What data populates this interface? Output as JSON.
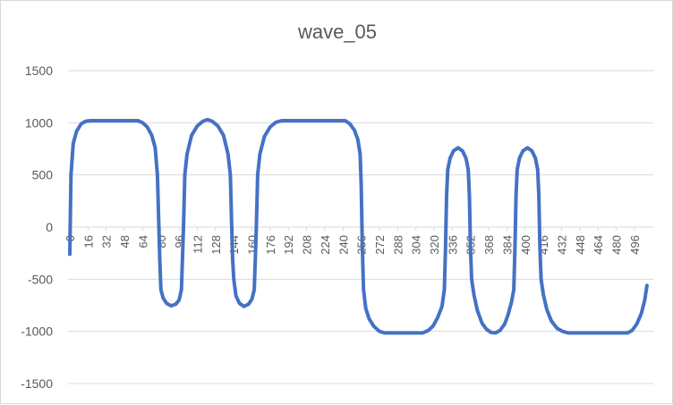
{
  "chart_data": {
    "type": "line",
    "title": "wave_05",
    "xlabel": "",
    "ylabel": "",
    "ylim": [
      -1500,
      1500
    ],
    "yticks": [
      1500,
      1000,
      500,
      0,
      -500,
      -1000,
      -1500
    ],
    "xticks": [
      0,
      16,
      32,
      48,
      64,
      80,
      96,
      112,
      128,
      144,
      160,
      176,
      192,
      208,
      224,
      240,
      256,
      272,
      288,
      304,
      320,
      336,
      352,
      368,
      384,
      400,
      416,
      432,
      448,
      464,
      480,
      496
    ],
    "xlim": [
      0,
      511
    ],
    "grid": "horizontal",
    "legend": "none",
    "series": [
      {
        "color": "#4472c4",
        "points": [
          [
            0,
            -260
          ],
          [
            1,
            500
          ],
          [
            3,
            800
          ],
          [
            6,
            920
          ],
          [
            10,
            990
          ],
          [
            14,
            1015
          ],
          [
            18,
            1020
          ],
          [
            60,
            1020
          ],
          [
            64,
            1000
          ],
          [
            68,
            960
          ],
          [
            72,
            880
          ],
          [
            75,
            760
          ],
          [
            77,
            500
          ],
          [
            78,
            100
          ],
          [
            79,
            -300
          ],
          [
            80,
            -600
          ],
          [
            82,
            -680
          ],
          [
            85,
            -730
          ],
          [
            89,
            -755
          ],
          [
            93,
            -740
          ],
          [
            96,
            -700
          ],
          [
            98,
            -600
          ],
          [
            99,
            -300
          ],
          [
            100,
            50
          ],
          [
            101,
            500
          ],
          [
            103,
            700
          ],
          [
            107,
            880
          ],
          [
            112,
            970
          ],
          [
            117,
            1015
          ],
          [
            121,
            1030
          ],
          [
            125,
            1015
          ],
          [
            130,
            970
          ],
          [
            135,
            880
          ],
          [
            139,
            700
          ],
          [
            141,
            500
          ],
          [
            142,
            100
          ],
          [
            143,
            -300
          ],
          [
            144,
            -500
          ],
          [
            146,
            -660
          ],
          [
            149,
            -730
          ],
          [
            153,
            -760
          ],
          [
            157,
            -740
          ],
          [
            160,
            -690
          ],
          [
            162,
            -600
          ],
          [
            163,
            -300
          ],
          [
            164,
            50
          ],
          [
            165,
            500
          ],
          [
            167,
            700
          ],
          [
            171,
            870
          ],
          [
            176,
            960
          ],
          [
            181,
            1005
          ],
          [
            186,
            1020
          ],
          [
            242,
            1020
          ],
          [
            246,
            990
          ],
          [
            250,
            930
          ],
          [
            253,
            840
          ],
          [
            255,
            700
          ],
          [
            256,
            400
          ],
          [
            257,
            -200
          ],
          [
            258,
            -600
          ],
          [
            260,
            -780
          ],
          [
            263,
            -880
          ],
          [
            267,
            -950
          ],
          [
            272,
            -1000
          ],
          [
            277,
            -1015
          ],
          [
            310,
            -1015
          ],
          [
            315,
            -990
          ],
          [
            319,
            -950
          ],
          [
            323,
            -870
          ],
          [
            327,
            -760
          ],
          [
            329,
            -600
          ],
          [
            330,
            -200
          ],
          [
            331,
            300
          ],
          [
            332,
            550
          ],
          [
            334,
            660
          ],
          [
            337,
            730
          ],
          [
            341,
            760
          ],
          [
            345,
            730
          ],
          [
            348,
            660
          ],
          [
            350,
            550
          ],
          [
            351,
            300
          ],
          [
            352,
            -200
          ],
          [
            353,
            -500
          ],
          [
            355,
            -650
          ],
          [
            358,
            -800
          ],
          [
            362,
            -920
          ],
          [
            366,
            -980
          ],
          [
            370,
            -1010
          ],
          [
            374,
            -1015
          ],
          [
            378,
            -990
          ],
          [
            382,
            -930
          ],
          [
            385,
            -840
          ],
          [
            388,
            -720
          ],
          [
            390,
            -600
          ],
          [
            391,
            -200
          ],
          [
            392,
            300
          ],
          [
            393,
            550
          ],
          [
            395,
            660
          ],
          [
            398,
            730
          ],
          [
            402,
            760
          ],
          [
            406,
            730
          ],
          [
            409,
            660
          ],
          [
            411,
            550
          ],
          [
            412,
            300
          ],
          [
            413,
            -200
          ],
          [
            414,
            -500
          ],
          [
            416,
            -650
          ],
          [
            419,
            -790
          ],
          [
            423,
            -900
          ],
          [
            428,
            -970
          ],
          [
            433,
            -1000
          ],
          [
            438,
            -1015
          ],
          [
            490,
            -1015
          ],
          [
            494,
            -990
          ],
          [
            498,
            -930
          ],
          [
            502,
            -830
          ],
          [
            505,
            -700
          ],
          [
            507,
            -560
          ]
        ]
      }
    ]
  }
}
